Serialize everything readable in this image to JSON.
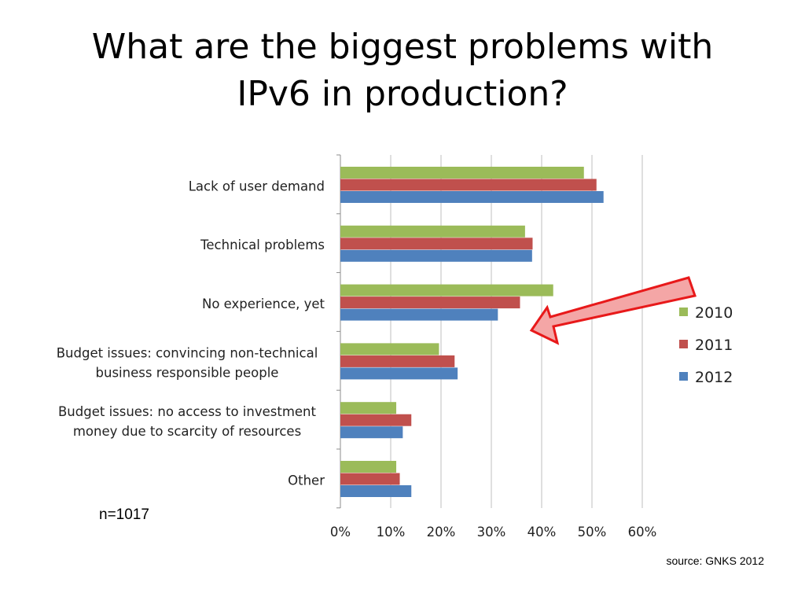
{
  "title_lines": [
    "What are the biggest problems with",
    "IPv6 in production?"
  ],
  "sample_size": "n=1017",
  "source": "source: GNKS 2012",
  "chart_data": {
    "type": "bar",
    "orientation": "horizontal",
    "categories": [
      [
        "Lack of user demand"
      ],
      [
        "Technical problems"
      ],
      [
        "No experience, yet"
      ],
      [
        "Budget issues: convincing non-technical",
        "business responsible people"
      ],
      [
        "Budget issues: no access to investment",
        "money due to scarcity of resources"
      ],
      [
        "Other"
      ]
    ],
    "series": [
      {
        "name": "2010",
        "color": "#9BBB59",
        "values": [
          48.4,
          36.7,
          42.3,
          19.6,
          11.1,
          11.1
        ]
      },
      {
        "name": "2011",
        "color": "#C0504D",
        "values": [
          50.9,
          38.2,
          35.7,
          22.7,
          14.1,
          11.8
        ]
      },
      {
        "name": "2012",
        "color": "#4F81BD",
        "values": [
          52.3,
          38.1,
          31.3,
          23.3,
          12.4,
          14.1
        ]
      }
    ],
    "xlim": [
      0,
      60
    ],
    "xticks": [
      "0%",
      "10%",
      "20%",
      "30%",
      "40%",
      "50%",
      "60%"
    ],
    "grid": true,
    "legend": "right",
    "annotation": "red arrow pointing at No experience, yet"
  }
}
